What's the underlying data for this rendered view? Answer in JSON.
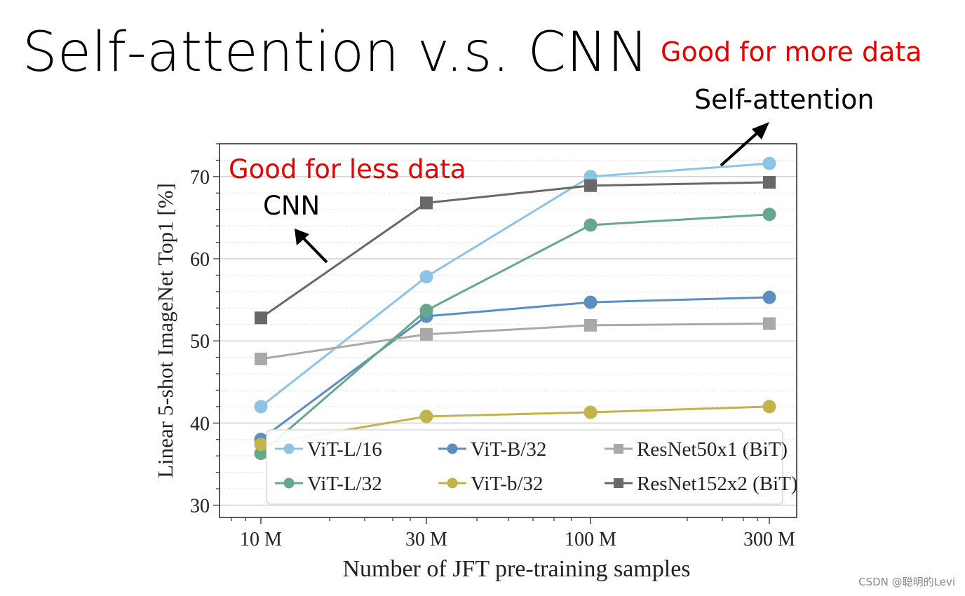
{
  "slide": {
    "title": "Self-attention v.s. CNN",
    "annotation_more": "Good for more data",
    "annotation_sa": "Self-attention",
    "annotation_less": "Good for less data",
    "annotation_cnn": "CNN",
    "watermark": "CSDN @聪明的Levi"
  },
  "chart_data": {
    "type": "line",
    "xlabel": "Number of JFT pre-training samples",
    "ylabel": "Linear 5-shot ImageNet Top1 [%]",
    "categories": [
      "10 M",
      "30 M",
      "100 M",
      "300 M"
    ],
    "ylim": [
      28.5,
      74
    ],
    "yticks": [
      30,
      40,
      50,
      60,
      70
    ],
    "legend_position": "lower-right",
    "grid": true,
    "series": [
      {
        "name": "ViT-L/16",
        "marker": "circle",
        "color": "#8ec3e8",
        "values": [
          42.0,
          57.8,
          70.0,
          71.6
        ]
      },
      {
        "name": "ViT-B/32",
        "marker": "circle",
        "color": "#5b8fc2",
        "values": [
          38.0,
          53.0,
          54.7,
          55.3
        ]
      },
      {
        "name": "ResNet50x1 (BiT)",
        "marker": "square",
        "color": "#a9a9a9",
        "values": [
          47.8,
          50.8,
          51.9,
          52.1
        ]
      },
      {
        "name": "ViT-L/32",
        "marker": "circle",
        "color": "#66a88a",
        "values": [
          36.3,
          53.7,
          64.1,
          65.4
        ]
      },
      {
        "name": "ViT-b/32",
        "marker": "circle",
        "color": "#c2b34a",
        "values": [
          37.4,
          40.8,
          41.3,
          42.0
        ]
      },
      {
        "name": "ResNet152x2 (BiT)",
        "marker": "square",
        "color": "#686868",
        "values": [
          52.8,
          66.8,
          68.9,
          69.3
        ]
      }
    ]
  }
}
